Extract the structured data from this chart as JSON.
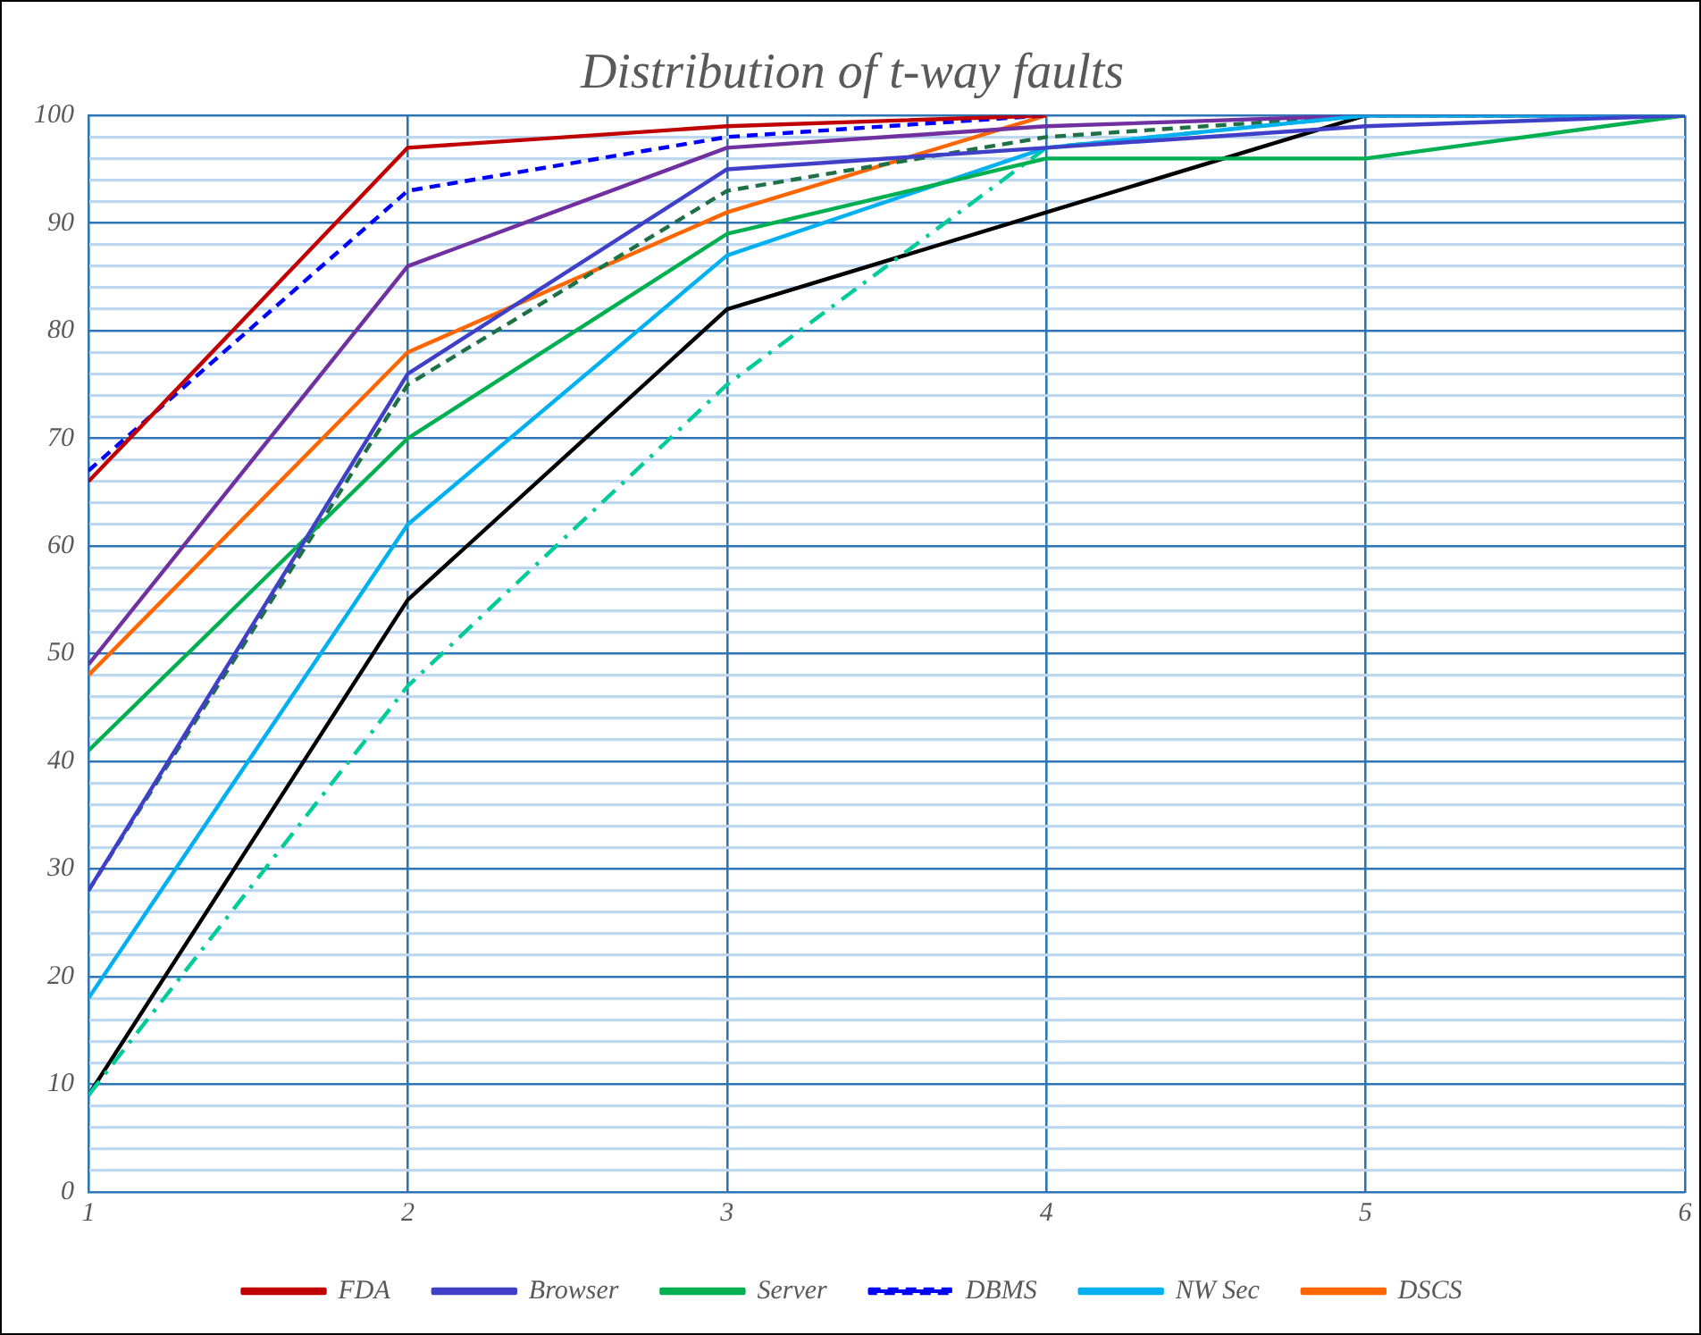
{
  "chart_data": {
    "type": "line",
    "title": "Distribution of t-way faults",
    "x": [
      1,
      2,
      3,
      4,
      5,
      6
    ],
    "xlim": [
      1,
      6
    ],
    "xticks": [
      1,
      2,
      3,
      4,
      5,
      6
    ],
    "ylim": [
      0,
      100
    ],
    "yticks": [
      0,
      {
        "value": 2,
        "label": null
      },
      {
        "value": 4,
        "label": null
      },
      {
        "value": 6,
        "label": null
      },
      {
        "value": 8,
        "label": null
      },
      10,
      {
        "value": 12,
        "label": null
      },
      {
        "value": 14,
        "label": null
      },
      {
        "value": 16,
        "label": null
      },
      {
        "value": 18,
        "label": null
      },
      20,
      {
        "value": 22,
        "label": null
      },
      {
        "value": 24,
        "label": null
      },
      {
        "value": 26,
        "label": null
      },
      {
        "value": 28,
        "label": null
      },
      30,
      {
        "value": 32,
        "label": null
      },
      {
        "value": 34,
        "label": null
      },
      {
        "value": 36,
        "label": null
      },
      {
        "value": 38,
        "label": null
      },
      40,
      {
        "value": 42,
        "label": null
      },
      {
        "value": 44,
        "label": null
      },
      {
        "value": 46,
        "label": null
      },
      {
        "value": 48,
        "label": null
      },
      50,
      {
        "value": 52,
        "label": null
      },
      {
        "value": 54,
        "label": null
      },
      {
        "value": 56,
        "label": null
      },
      {
        "value": 58,
        "label": null
      },
      60,
      {
        "value": 62,
        "label": null
      },
      {
        "value": 64,
        "label": null
      },
      {
        "value": 66,
        "label": null
      },
      {
        "value": 68,
        "label": null
      },
      70,
      {
        "value": 72,
        "label": null
      },
      {
        "value": 74,
        "label": null
      },
      {
        "value": 76,
        "label": null
      },
      {
        "value": 78,
        "label": null
      },
      80,
      {
        "value": 82,
        "label": null
      },
      {
        "value": 84,
        "label": null
      },
      {
        "value": 86,
        "label": null
      },
      {
        "value": 88,
        "label": null
      },
      90,
      {
        "value": 92,
        "label": null
      },
      {
        "value": 94,
        "label": null
      },
      {
        "value": 96,
        "label": null
      },
      {
        "value": 98,
        "label": null
      },
      100
    ],
    "grid": true,
    "legend": "bottom",
    "marker": "none",
    "series": [
      {
        "name": "FDA",
        "color": "#c00000",
        "line_style": "solid",
        "values": [
          66,
          97,
          99,
          100,
          null,
          null
        ]
      },
      {
        "name": "Browser",
        "color": "#3f3fc8",
        "line_style": "solid",
        "values": [
          28,
          76,
          95,
          97,
          99,
          100
        ]
      },
      {
        "name": "Server",
        "color": "#00b050",
        "line_style": "solid",
        "values": [
          41,
          70,
          89,
          96,
          96,
          100
        ]
      },
      {
        "name": "DBMS",
        "color": "#0000ff",
        "line_style": "dashed",
        "values": [
          67,
          93,
          98,
          100,
          null,
          null
        ]
      },
      {
        "name": "NW Sec",
        "color": "#00b0f0",
        "line_style": "solid",
        "values": [
          18,
          62,
          87,
          97,
          100,
          100
        ]
      },
      {
        "color": "#7030a0",
        "line_style": "solid",
        "values": [
          49,
          86,
          97,
          99,
          100,
          100
        ]
      },
      {
        "color": "#1e7145",
        "line_style": "dashed",
        "values": [
          28,
          75,
          93,
          98,
          100,
          100
        ]
      },
      {
        "color": "#00cc99",
        "line_style": "dashdot",
        "values": [
          9,
          47,
          75,
          97,
          100,
          100
        ]
      },
      {
        "name": "DSCS",
        "color": "#ff6600",
        "line_style": "solid",
        "values": [
          48,
          78,
          91,
          100,
          null,
          null
        ]
      },
      {
        "color": "#000000",
        "line_style": "solid",
        "values": [
          9,
          55,
          82,
          91,
          100,
          null
        ]
      }
    ]
  }
}
